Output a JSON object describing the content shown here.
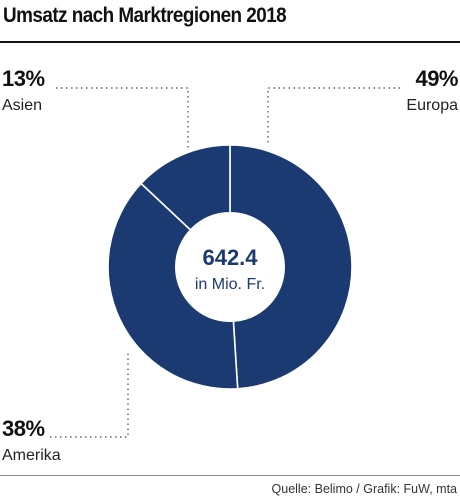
{
  "chart_data": {
    "type": "pie",
    "title": "Umsatz nach Marktregionen 2018",
    "categories": [
      "Europa",
      "Amerika",
      "Asien"
    ],
    "values": [
      49,
      38,
      13
    ],
    "value_labels": [
      "49%",
      "38%",
      "13%"
    ],
    "center_value": "642.4",
    "center_unit": "in Mio. Fr.",
    "colors": {
      "slice": "#1c3a72",
      "border": "#ffffff",
      "center": "#ffffff",
      "leader": "#444444"
    }
  },
  "source": "Quelle: Belimo / Grafik: FuW, mta"
}
